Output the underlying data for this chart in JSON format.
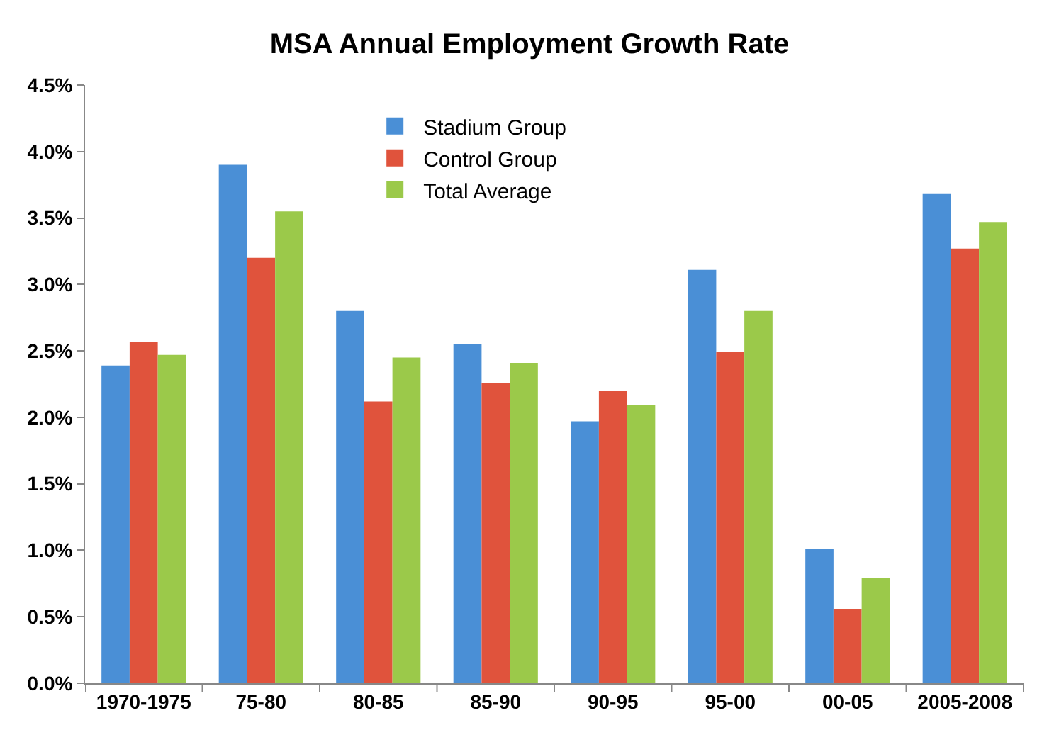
{
  "chart_data": {
    "type": "bar",
    "title": "MSA Annual Employment Growth Rate",
    "categories": [
      "1970-1975",
      "75-80",
      "80-85",
      "85-90",
      "90-95",
      "95-00",
      "00-05",
      "2005-2008"
    ],
    "series": [
      {
        "name": "Stadium Group",
        "color": "#4a8fd6",
        "values": [
          2.39,
          3.9,
          2.8,
          2.55,
          1.97,
          3.11,
          1.01,
          3.68
        ]
      },
      {
        "name": "Control Group",
        "color": "#e0533c",
        "values": [
          2.57,
          3.2,
          2.12,
          2.26,
          2.2,
          2.49,
          0.56,
          3.27
        ]
      },
      {
        "name": "Total Average",
        "color": "#9bc94a",
        "values": [
          2.47,
          3.55,
          2.45,
          2.41,
          2.09,
          2.8,
          0.79,
          3.47
        ]
      }
    ],
    "ylim": [
      0,
      4.5
    ],
    "yticks": [
      {
        "value": 0,
        "label": "0.0%"
      },
      {
        "value": 0.5,
        "label": "0.5%"
      },
      {
        "value": 1,
        "label": "1.0%"
      },
      {
        "value": 1.5,
        "label": "1.5%"
      },
      {
        "value": 2,
        "label": "2.0%"
      },
      {
        "value": 2.5,
        "label": "2.5%"
      },
      {
        "value": 3,
        "label": "3.0%"
      },
      {
        "value": 3.5,
        "label": "3.5%"
      },
      {
        "value": 4,
        "label": "4.0%"
      },
      {
        "value": 4.5,
        "label": "4.5%"
      }
    ],
    "grid": false,
    "legend": "top"
  }
}
